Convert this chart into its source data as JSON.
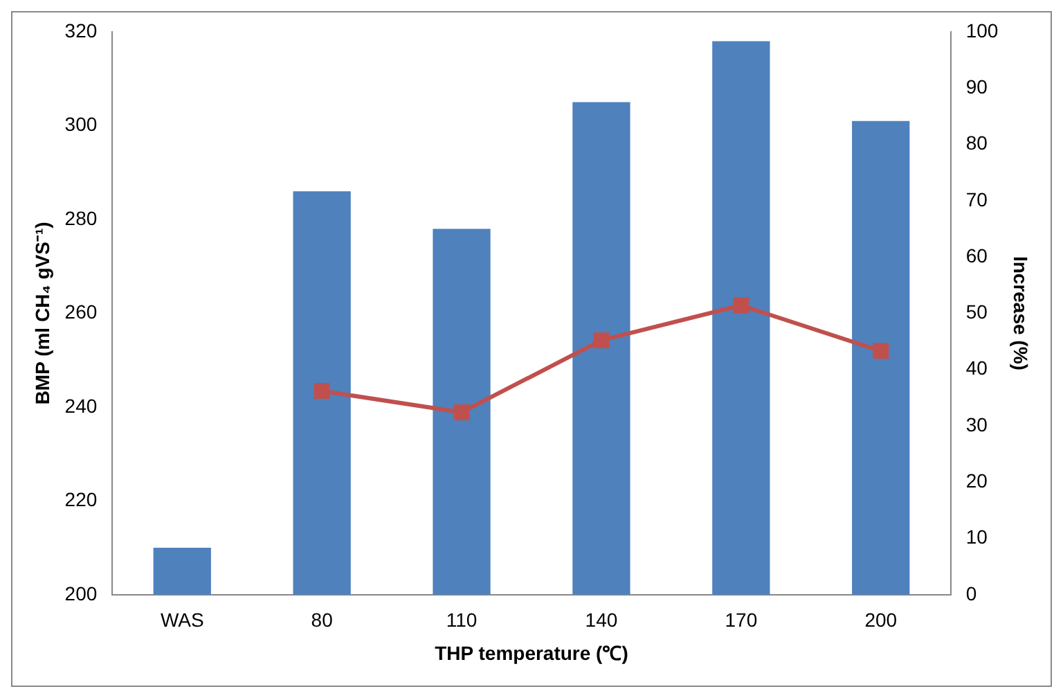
{
  "chart_data": {
    "type": "bar",
    "xlabel": "THP temperature (℃)",
    "ylabel": "BMP (ml CH₄ gVS⁻¹)",
    "y2label": "Increase (%)",
    "categories": [
      "WAS",
      "80",
      "110",
      "140",
      "170",
      "200"
    ],
    "series": [
      {
        "color": "#4f81bd",
        "values": [
          210,
          286,
          278,
          305,
          318,
          301
        ]
      },
      {
        "type": "line",
        "axis": "y2",
        "color": "#c0504d",
        "marker": "square",
        "values": [
          null,
          36.2,
          32.4,
          45.2,
          51.4,
          43.3
        ]
      }
    ],
    "ylim": [
      200,
      320
    ],
    "yticks": [
      200,
      220,
      240,
      260,
      280,
      300,
      320
    ],
    "y2lim": [
      0,
      100
    ],
    "y2ticks": [
      0,
      10,
      20,
      30,
      40,
      50,
      60,
      70,
      80,
      90,
      100
    ],
    "grid": false,
    "legend": false
  }
}
